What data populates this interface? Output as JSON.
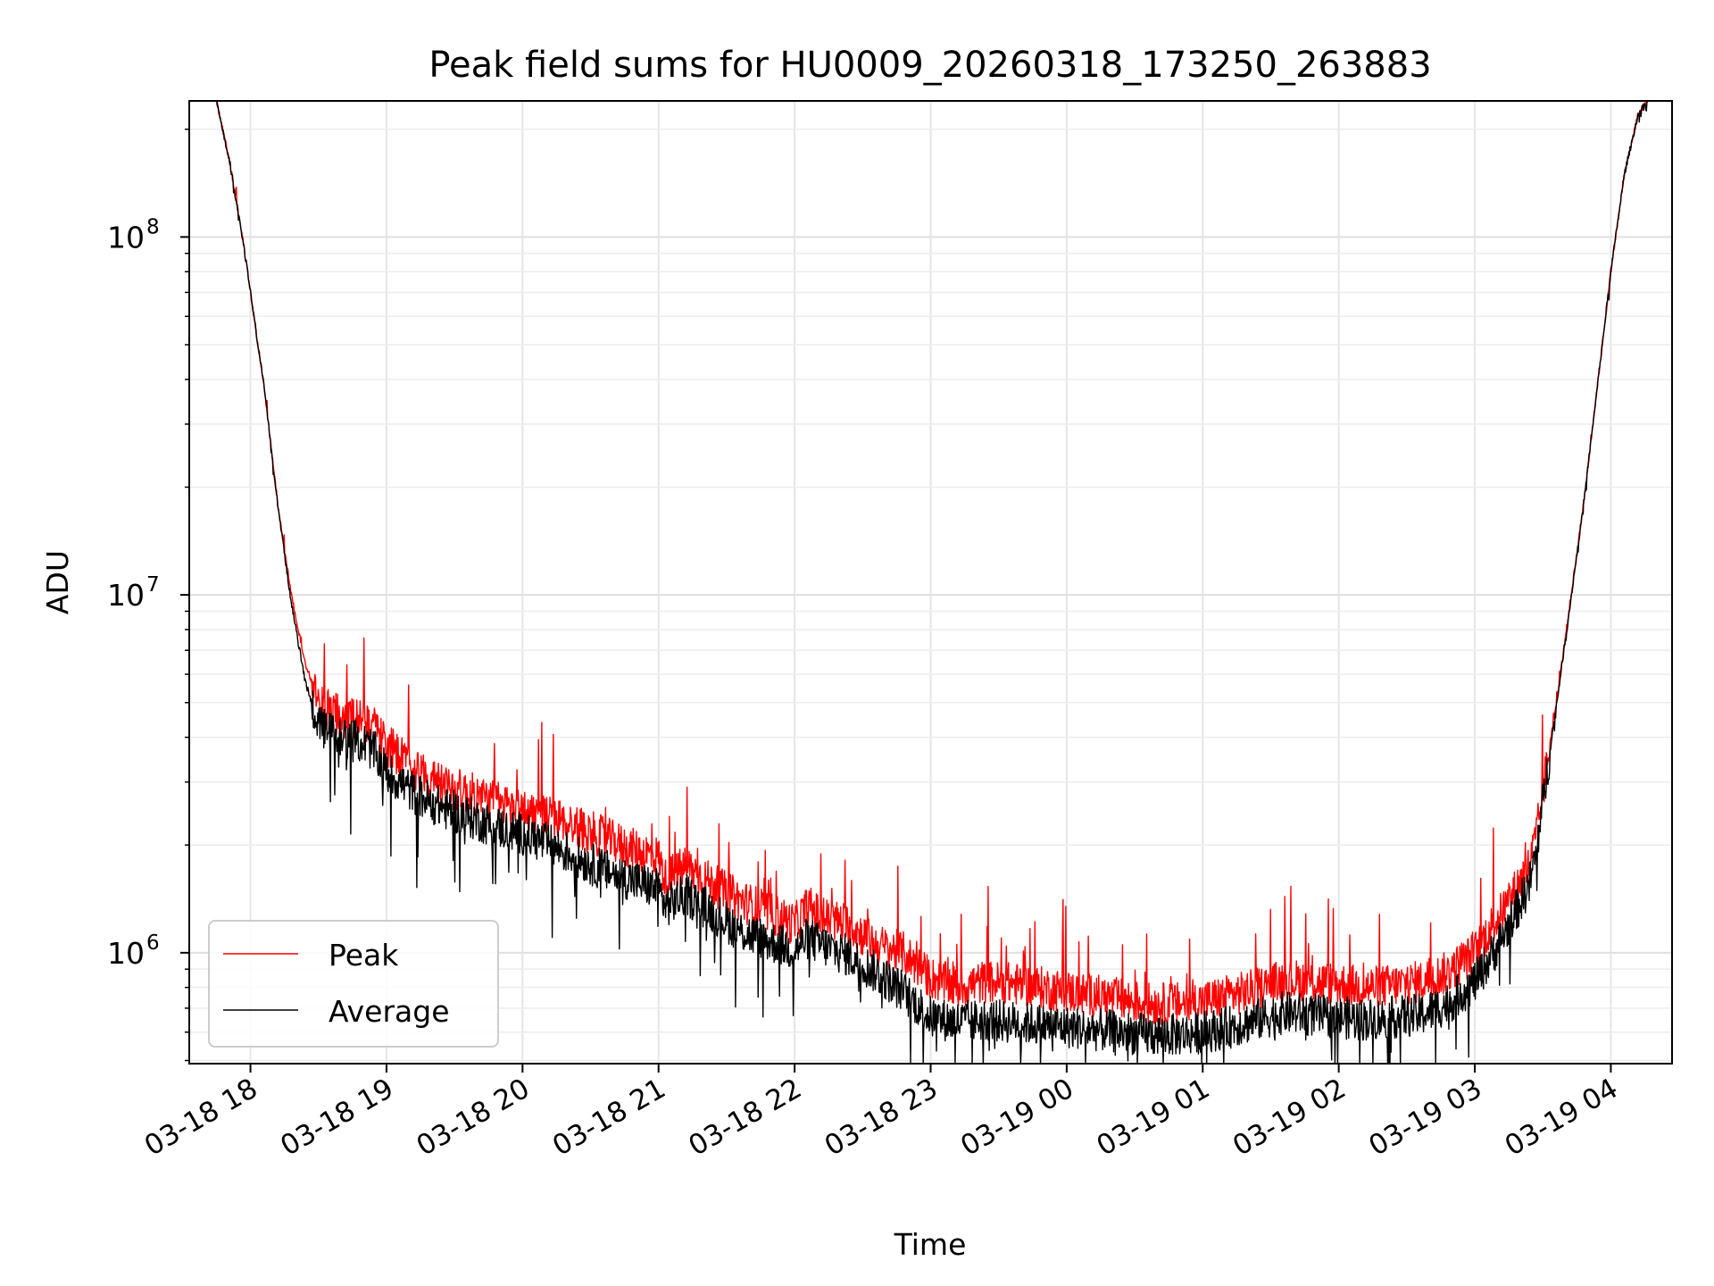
{
  "chart_data": {
    "type": "line",
    "title": "Peak field sums for HU0009_20260318_173250_263883",
    "xlabel": "Time",
    "ylabel": "ADU",
    "yscale": "log",
    "xlim_hours": [
      17.55,
      28.45
    ],
    "ylim": [
      490000,
      240000000
    ],
    "grid": true,
    "legend_location": "lower left",
    "x_tick_hours": [
      18,
      19,
      20,
      21,
      22,
      23,
      24,
      25,
      26,
      27,
      28
    ],
    "x_tick_labels": [
      "03-18 18",
      "03-18 19",
      "03-18 20",
      "03-18 21",
      "03-18 22",
      "03-18 23",
      "03-19 00",
      "03-19 01",
      "03-19 02",
      "03-19 03",
      "03-19 04"
    ],
    "y_ticks": [
      {
        "value": 1000000,
        "base": "10",
        "exp": "6"
      },
      {
        "value": 10000000,
        "base": "10",
        "exp": "7"
      },
      {
        "value": 100000000,
        "base": "10",
        "exp": "8"
      }
    ],
    "series": [
      {
        "name": "Peak",
        "color": "#ff0000",
        "x_hours": [
          17.75,
          17.85,
          17.95,
          18.0,
          18.1,
          18.2,
          18.3,
          18.4,
          18.5,
          18.6,
          18.7,
          18.8,
          18.9,
          19.0,
          19.2,
          19.4,
          19.6,
          19.8,
          20.0,
          20.2,
          20.4,
          20.6,
          20.8,
          21.0,
          21.05,
          21.2,
          21.4,
          21.6,
          21.8,
          22.0,
          22.1,
          22.2,
          22.4,
          22.6,
          22.8,
          23.0,
          23.2,
          23.4,
          23.6,
          23.8,
          24.0,
          24.2,
          24.4,
          24.6,
          24.8,
          25.0,
          25.2,
          25.4,
          25.6,
          25.8,
          26.0,
          26.2,
          26.4,
          26.6,
          26.8,
          27.0,
          27.1,
          27.2,
          27.3,
          27.4,
          27.45,
          27.5,
          27.55,
          27.6,
          27.7,
          27.8,
          27.9,
          28.0,
          28.1,
          28.2,
          28.27
        ],
        "values": [
          240000000,
          160000000,
          95000000,
          70000000,
          38000000,
          18000000,
          10000000,
          6500000,
          5000000,
          4700000,
          4500000,
          4600000,
          4300000,
          3800000,
          3300000,
          2950000,
          2800000,
          2650000,
          2500000,
          2400000,
          2250000,
          2100000,
          1950000,
          1850000,
          1600000,
          1750000,
          1550000,
          1400000,
          1300000,
          1200000,
          1350000,
          1250000,
          1200000,
          1050000,
          1000000,
          850000,
          800000,
          830000,
          820000,
          800000,
          780000,
          760000,
          740000,
          720000,
          720000,
          730000,
          760000,
          790000,
          840000,
          830000,
          820000,
          800000,
          810000,
          830000,
          880000,
          1000000,
          1150000,
          1300000,
          1500000,
          1750000,
          2100000,
          2800000,
          3800000,
          5000000,
          9500000,
          18000000,
          38000000,
          80000000,
          150000000,
          220000000,
          240000000
        ]
      },
      {
        "name": "Average",
        "color": "#000000",
        "x_hours": [
          17.75,
          17.85,
          17.95,
          18.0,
          18.1,
          18.2,
          18.3,
          18.4,
          18.5,
          18.6,
          18.7,
          18.8,
          18.9,
          19.0,
          19.2,
          19.4,
          19.6,
          19.8,
          20.0,
          20.2,
          20.4,
          20.6,
          20.8,
          21.0,
          21.05,
          21.2,
          21.4,
          21.6,
          21.8,
          22.0,
          22.1,
          22.2,
          22.4,
          22.6,
          22.8,
          23.0,
          23.2,
          23.4,
          23.6,
          23.8,
          24.0,
          24.2,
          24.4,
          24.6,
          24.8,
          25.0,
          25.2,
          25.4,
          25.6,
          25.8,
          26.0,
          26.2,
          26.4,
          26.6,
          26.8,
          27.0,
          27.1,
          27.2,
          27.3,
          27.4,
          27.45,
          27.5,
          27.55,
          27.6,
          27.7,
          27.8,
          27.9,
          28.0,
          28.1,
          28.2,
          28.27
        ],
        "values": [
          240000000,
          160000000,
          95000000,
          70000000,
          38000000,
          18000000,
          9500000,
          5800000,
          4300000,
          4100000,
          3950000,
          3900000,
          3700000,
          3200000,
          2800000,
          2550000,
          2400000,
          2250000,
          2150000,
          2000000,
          1850000,
          1700000,
          1600000,
          1500000,
          1350000,
          1450000,
          1300000,
          1150000,
          1080000,
          1020000,
          1100000,
          1050000,
          980000,
          880000,
          780000,
          660000,
          640000,
          650000,
          640000,
          630000,
          620000,
          610000,
          600000,
          590000,
          590000,
          600000,
          620000,
          650000,
          680000,
          670000,
          660000,
          650000,
          660000,
          670000,
          720000,
          830000,
          950000,
          1100000,
          1300000,
          1550000,
          1900000,
          2600000,
          3600000,
          4900000,
          9300000,
          18000000,
          38000000,
          80000000,
          150000000,
          220000000,
          240000000
        ]
      }
    ]
  }
}
